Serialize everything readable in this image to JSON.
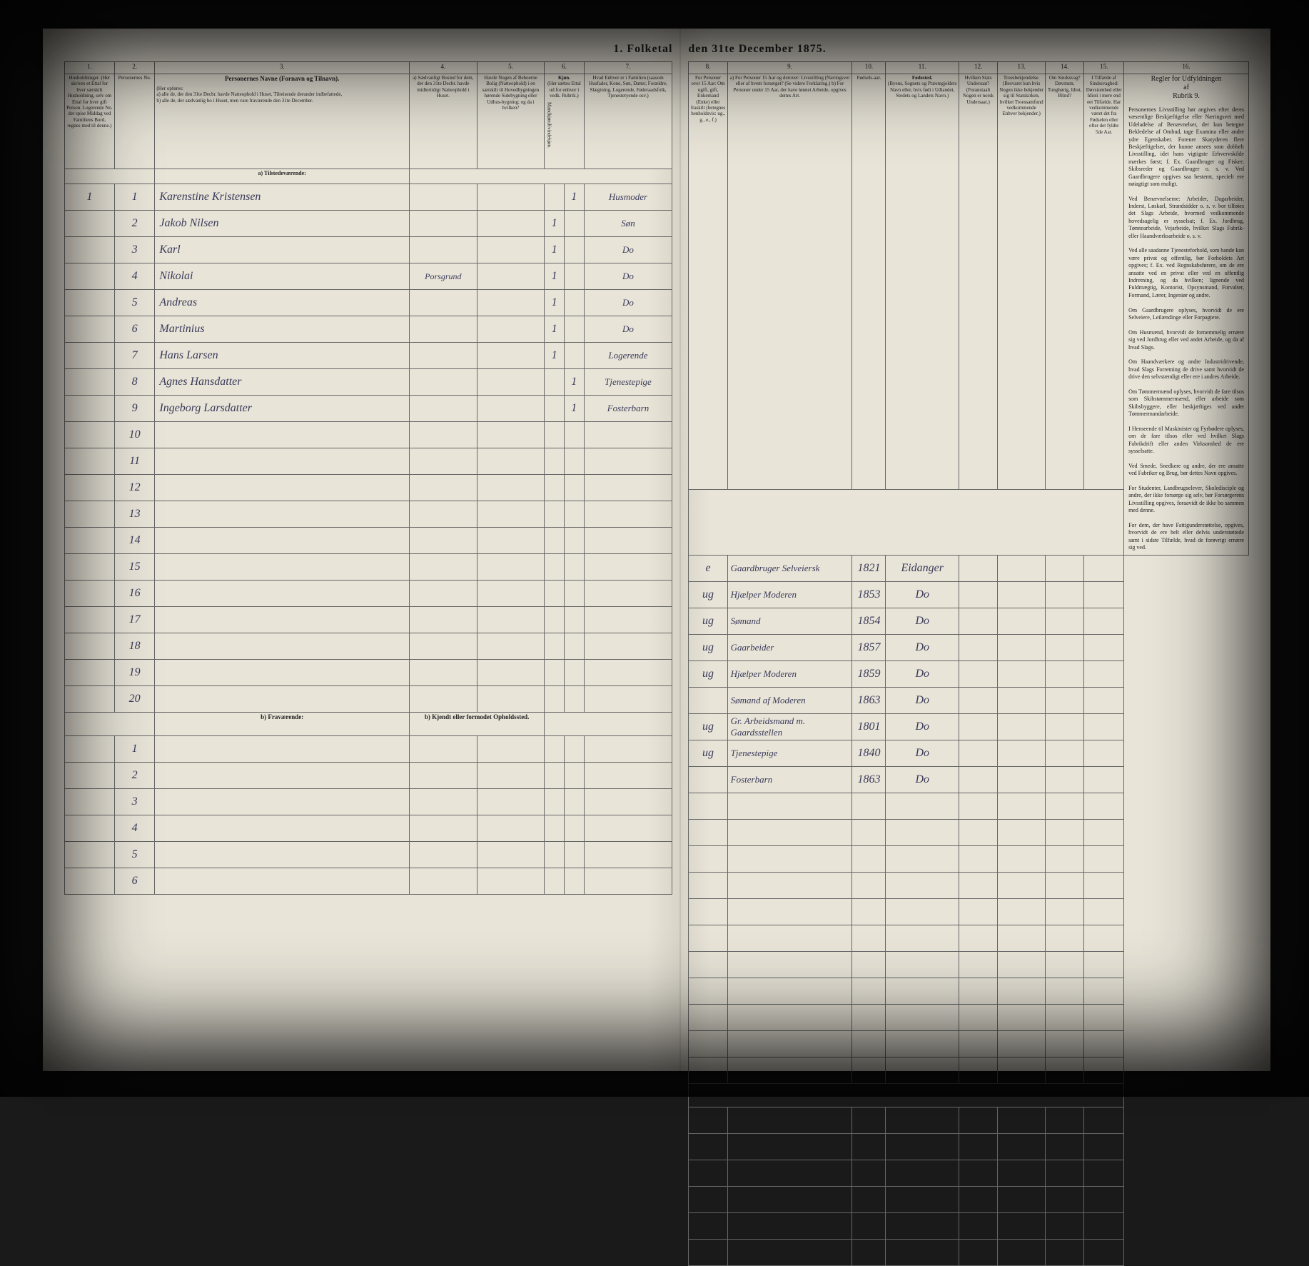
{
  "title_left": "1. Folketal",
  "title_right": "den 31te December 1875.",
  "columns_left": [
    "1.",
    "2.",
    "3.",
    "4.",
    "5.",
    "6.",
    "7."
  ],
  "columns_right": [
    "8.",
    "9.",
    "10.",
    "11.",
    "12.",
    "13.",
    "14.",
    "15.",
    "16."
  ],
  "header_left": {
    "c1": "Husholdninger. (Her skrives et Ettal for hver særskilt Husholdning, selv om Ettal for hver gift Person. Logerende No. der spise Middag ved Familiens Bord, regnes med til denne.)",
    "c2": "Personernes No.",
    "c3_title": "Personernes Navne (Fornavn og Tilnavn).",
    "c3_sub": "(Her opføres:\na) alle de, der den 31te Decbr. havde Natteophold i Huset, Tilreisende derunder indbefattede,\nb) alle de, der sædvanlig bo i Huset, men vare fraværende den 31te December.",
    "c4": "a) Sædvanligt Bosted for dem, der den 31te Decbr. havde midlertidigt Natteophold i Huset.",
    "c5": "Havde Nogen af Beboerne Bolig (Natteophold) i en særskilt til Hovedbygningen hørende Sidebygning eller Udhus-bygning; og da i hvilken?",
    "c6_title": "Kjøn.",
    "c6_sub": "(Her sættes Ettal ud for enhver i vedk. Rubrik.)",
    "c6a": "Mandkjøn.",
    "c6b": "Kvindekjøn.",
    "c7": "Hvad Enhver er i Familien (saasom Husfader, Kone, Søn, Datter, Forældre, Slægtning, Logerende, Føderaadsfolk, Tjenestetyende osv.)"
  },
  "header_right": {
    "c8": "For Personer over 15 Aar: Om ugift, gift, Enkemand (Enke) eller fraskilt (betegnes henholdsvis: ug., g., e., f.)",
    "c9": "a) For Personer 15 Aar og derover: Livsstilling (Næringsvei eller af hvem forsørget? (Se videre Forklaring.)\nb) For Personer under 15 Aar, der have lønnet Arbeide, opgives dettes Art.",
    "c10": "Fødsels-aar.",
    "c11_title": "Fødested.",
    "c11_sub": "(Byens, Sognets og Præstegjeldets Navn eller, hvis født i Udlandet, Stedets og Landets Navn.)",
    "c12": "Hvilken Stats Undersaat? (Foranstaalt Nogen er norsk Undersaat.)",
    "c13": "Troesbekjendelse. (Besvaret kun hvis Nogen ikke bekjender sig til Statskirken, hvilket Troessamfund vedkommende Enhver bekjender.)",
    "c14": "Om Sindssvag? Døvstum, Tunghørig, Idiot, Blind?",
    "c15": "I Tilfælde af Sindssvaghed: Døvstumhed eller Idioti i mere end eet Tilfælde. Har vedkommende været det fra Fødselen eller efter det fyldte 5de Aar.",
    "c16_title": "Regler for Udfyldningen\naf\nRubrik 9."
  },
  "section_a": "a) Tilstedeværende:",
  "section_b": "b) Fraværende:",
  "section_b_right": "b) Kjendt eller formodet Opholdssted.",
  "rows": [
    {
      "n": "1",
      "hh": "1",
      "name": "Karenstine Kristensen",
      "c4": "",
      "c5": "",
      "m": "",
      "k": "1",
      "c7": "Husmoder",
      "c8": "e",
      "c9": "Gaardbruger Selveiersk",
      "c10": "1821",
      "c11": "Eidanger"
    },
    {
      "n": "2",
      "hh": "",
      "name": "Jakob Nilsen",
      "c4": "",
      "c5": "",
      "m": "1",
      "k": "",
      "c7": "Søn",
      "c8": "ug",
      "c9": "Hjælper Moderen",
      "c10": "1853",
      "c11": "Do"
    },
    {
      "n": "3",
      "hh": "",
      "name": "Karl",
      "c4": "",
      "c5": "",
      "m": "1",
      "k": "",
      "c7": "Do",
      "c8": "ug",
      "c9": "Sømand",
      "c10": "1854",
      "c11": "Do"
    },
    {
      "n": "4",
      "hh": "",
      "name": "Nikolai",
      "c4": "Porsgrund",
      "c5": "",
      "m": "1",
      "k": "",
      "c7": "Do",
      "c8": "ug",
      "c9": "Gaarbeider",
      "c10": "1857",
      "c11": "Do"
    },
    {
      "n": "5",
      "hh": "",
      "name": "Andreas",
      "c4": "",
      "c5": "",
      "m": "1",
      "k": "",
      "c7": "Do",
      "c8": "ug",
      "c9": "Hjælper Moderen",
      "c10": "1859",
      "c11": "Do"
    },
    {
      "n": "6",
      "hh": "",
      "name": "Martinius",
      "c4": "",
      "c5": "",
      "m": "1",
      "k": "",
      "c7": "Do",
      "c8": "",
      "c9": "Sømand af Moderen",
      "c10": "1863",
      "c11": "Do"
    },
    {
      "n": "7",
      "hh": "",
      "name": "Hans Larsen",
      "c4": "",
      "c5": "",
      "m": "1",
      "k": "",
      "c7": "Logerende",
      "c8": "ug",
      "c9": "Gr. Arbeidsmand m. Gaardsstellen",
      "c10": "1801",
      "c11": "Do"
    },
    {
      "n": "8",
      "hh": "",
      "name": "Agnes Hansdatter",
      "c4": "",
      "c5": "",
      "m": "",
      "k": "1",
      "c7": "Tjenestepige",
      "c8": "ug",
      "c9": "Tjenestepige",
      "c10": "1840",
      "c11": "Do"
    },
    {
      "n": "9",
      "hh": "",
      "name": "Ingeborg Larsdatter",
      "c4": "",
      "c5": "",
      "m": "",
      "k": "1",
      "c7": "Fosterbarn",
      "c8": "",
      "c9": "Fosterbarn",
      "c10": "1863",
      "c11": "Do"
    }
  ],
  "empty_rows": [
    "10",
    "11",
    "12",
    "13",
    "14",
    "15",
    "16",
    "17",
    "18",
    "19",
    "20"
  ],
  "bottom_rows": [
    "1",
    "2",
    "3",
    "4",
    "5",
    "6"
  ],
  "rules_text": "Personernes Livsstilling bør angives efter deres væsentlige Beskjæftigelse eller Næringsvei med Udeladelse af Benævnelser, der kun betegne Bekledelse af Ombud, tage Examina eller andre ydre Egenskaber. Forener Skatyderen flere Beskjæftigelser, der kunne ansees som dobbelt Livsstilling, idet hans vigtigste Erhvervskilde mærkes først; f. Ex. Gaardbruger og Fisker; Skibsreder og Gaardbruger o. s. v. Ved Gaardbrugere opgives saa bestemt, specielt ere nøiagtigt som muligt.\n\nVed Benævnelserne: Arbeider, Dagarbeider, Inderst, Løskarl, Strandsidder o. s. v. bor tilføies det Slags Arbeide, hvormed vedkommende hovedsagelig er sysselsat; f. Ex. Jordbrug, Tømtearbeide, Vejarbeide, hvilket Slags Fabrik- eller Haandværksarbeide o. s. v.\n\nVed alle saadanne Tjenesteforhold, som bande kan være privat og offentlig, bør Forholdets Art opgives; f. Ex. ved Regnskabsførere, om de ere ansatte ved en privat eller ved en offentlig Indretning, og da hvilken; lignende ved Fuldmægtig, Kontorist, Opsynsmand, Forvalter, Formand, Lærer, Ingeniør og andre.\n\nOm Gaardbrugere oplyses, hvorvidt de ere Selveiere, Leilændinge eller Forpagtere.\n\nOm Husmænd, hvorvidt de fornemmelig ernære sig ved Jordbrug eller ved andet Arbeide, og da af hvad Slags.\n\nOm Haandværkere og andre Industridrivende, hvad Slags Forretning de drive samt hvorvidt de drive den selvstændigt eller ere i andres Arbeide.\n\nOm Tømmermænd oplyses, hvorvidt de fare tilsos som Skibstømmermænd, eller arbeide som Skibsbyggere, eller beskjæftiges ved andet Tømmermandarbeide.\n\nI Henseende til Maskinister og Fyrbødere oplyses, om de fare tilsos eller ved hvilket Slags Fabrikdrift eller anden Virksomhed de ere sysselsatte.\n\nVed Smede, Snedkere og andre, der ere ansatte ved Fabriker og Brug, bør dettes Navn opgives.\n\nFor Studenter, Landbrugselever, Skoledisciple og andre, der ikke forsørge sig selv, bør Forsørgerens Livsstilling opgives, foraavidt de ikke bo sammen med denne.\n\nFor dem, der have Fattigunderstøttelse, opgives, hvorvidt de ere helt eller delvis understøttede samt i sidste Tilfælde, hvad de forøvrigt ernære sig ved.",
  "colors": {
    "paper": "#e8e4d8",
    "ink": "#222222",
    "handwriting": "#3a3a5a",
    "border": "#666666",
    "background": "#1a1a1a"
  }
}
